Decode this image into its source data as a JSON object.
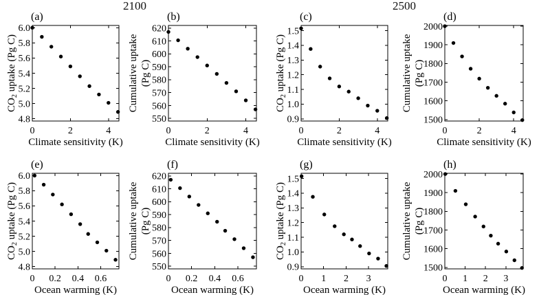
{
  "groups": [
    {
      "label": "2100"
    },
    {
      "label": "2500"
    }
  ],
  "chart_data": [
    {
      "panel": "(a)",
      "type": "scatter",
      "group": "2100",
      "xlabel": "Climate sensitivity (K)",
      "ylabel_lines": [
        [
          {
            "t": "CO"
          },
          {
            "t": "2",
            "sub": true
          },
          {
            "t": " uptake (Pg C)"
          }
        ]
      ],
      "x": [
        0,
        0.5,
        1.0,
        1.5,
        2.0,
        2.5,
        3.0,
        3.5,
        4.0,
        4.5
      ],
      "y": [
        6.0,
        5.88,
        5.75,
        5.62,
        5.49,
        5.36,
        5.23,
        5.12,
        5.01,
        4.89
      ],
      "xlim": [
        0,
        4.55
      ],
      "ylim": [
        4.77,
        6.03
      ],
      "xtick_vals": [
        0,
        2,
        4
      ],
      "xtick_labels": [
        "0",
        "2",
        "4"
      ],
      "ytick_vals": [
        4.8,
        5.0,
        5.2,
        5.4,
        5.6,
        5.8,
        6.0
      ],
      "ytick_labels": [
        "4.8",
        "5.0",
        "5.2",
        "5.4",
        "5.6",
        "5.8",
        "6.0"
      ],
      "grid": false,
      "legend": null
    },
    {
      "panel": "(b)",
      "type": "scatter",
      "group": "2100",
      "xlabel": "Climate sensitivity (K)",
      "ylabel_lines": [
        [
          {
            "t": "Cumulative uptake"
          }
        ],
        [
          {
            "t": "(Pg C)"
          }
        ]
      ],
      "x": [
        0,
        0.5,
        1.0,
        1.5,
        2.0,
        2.5,
        3.0,
        3.5,
        4.0,
        4.5
      ],
      "y": [
        617,
        610.5,
        604,
        597.5,
        591,
        584.5,
        577.5,
        571,
        564,
        557
      ],
      "xlim": [
        0,
        4.55
      ],
      "ylim": [
        548,
        622
      ],
      "xtick_vals": [
        0,
        2,
        4
      ],
      "xtick_labels": [
        "0",
        "2",
        "4"
      ],
      "ytick_vals": [
        550,
        560,
        570,
        580,
        590,
        600,
        610,
        620
      ],
      "ytick_labels": [
        "550",
        "560",
        "570",
        "580",
        "590",
        "600",
        "610",
        "620"
      ],
      "grid": false,
      "legend": null
    },
    {
      "panel": "(c)",
      "type": "scatter",
      "group": "2500",
      "xlabel": "Climate sensitivity (K)",
      "ylabel_lines": [
        [
          {
            "t": "CO"
          },
          {
            "t": "2",
            "sub": true
          },
          {
            "t": " uptake (Pg C)"
          }
        ]
      ],
      "x": [
        0,
        0.5,
        1.0,
        1.5,
        2.0,
        2.5,
        3.0,
        3.5,
        4.0,
        4.5
      ],
      "y": [
        1.515,
        1.375,
        1.255,
        1.175,
        1.12,
        1.085,
        1.04,
        0.99,
        0.955,
        0.905
      ],
      "xlim": [
        0,
        4.55
      ],
      "ylim": [
        0.885,
        1.535
      ],
      "xtick_vals": [
        0,
        2,
        4
      ],
      "xtick_labels": [
        "0",
        "2",
        "4"
      ],
      "ytick_vals": [
        0.9,
        1.0,
        1.1,
        1.2,
        1.3,
        1.4,
        1.5
      ],
      "ytick_labels": [
        "0.9",
        "1.0",
        "1.1",
        "1.2",
        "1.3",
        "1.4",
        "1.5"
      ],
      "grid": false,
      "legend": null
    },
    {
      "panel": "(d)",
      "type": "scatter",
      "group": "2500",
      "xlabel": "Climate sensitivity (K)",
      "ylabel_lines": [
        [
          {
            "t": "Cumulative uptake"
          }
        ],
        [
          {
            "t": "(Pg C)"
          }
        ]
      ],
      "x": [
        0,
        0.5,
        1.0,
        1.5,
        2.0,
        2.5,
        3.0,
        3.5,
        4.0,
        4.5
      ],
      "y": [
        2000,
        1910,
        1838,
        1772,
        1719,
        1670,
        1627,
        1585,
        1538,
        1497
      ],
      "xlim": [
        0,
        4.55
      ],
      "ylim": [
        1492,
        2004
      ],
      "xtick_vals": [
        0,
        2,
        4
      ],
      "xtick_labels": [
        "0",
        "2",
        "4"
      ],
      "ytick_vals": [
        1500,
        1600,
        1700,
        1800,
        1900,
        2000
      ],
      "ytick_labels": [
        "1500",
        "1600",
        "1700",
        "1800",
        "1900",
        "2000"
      ],
      "grid": false,
      "legend": null
    },
    {
      "panel": "(e)",
      "type": "scatter",
      "group": "2100",
      "xlabel": "Ocean warming (K)",
      "ylabel_lines": [
        [
          {
            "t": "CO"
          },
          {
            "t": "2",
            "sub": true
          },
          {
            "t": " uptake (Pg C)"
          }
        ]
      ],
      "x": [
        0.02,
        0.1,
        0.18,
        0.26,
        0.34,
        0.42,
        0.49,
        0.57,
        0.65,
        0.73
      ],
      "y": [
        6.0,
        5.88,
        5.75,
        5.62,
        5.49,
        5.36,
        5.23,
        5.12,
        5.01,
        4.89
      ],
      "xlim": [
        0,
        0.76
      ],
      "ylim": [
        4.77,
        6.03
      ],
      "xtick_vals": [
        0,
        0.2,
        0.4,
        0.6
      ],
      "xtick_labels": [
        "0",
        "0.2",
        "0.4",
        "0.6"
      ],
      "ytick_vals": [
        4.8,
        5.0,
        5.2,
        5.4,
        5.6,
        5.8,
        6.0
      ],
      "ytick_labels": [
        "4.8",
        "5.0",
        "5.2",
        "5.4",
        "5.6",
        "5.8",
        "6.0"
      ],
      "grid": false,
      "legend": null
    },
    {
      "panel": "(f)",
      "type": "scatter",
      "group": "2100",
      "xlabel": "Ocean warming (K)",
      "ylabel_lines": [
        [
          {
            "t": "Cumulative uptake"
          }
        ],
        [
          {
            "t": "(Pg C)"
          }
        ]
      ],
      "x": [
        0.02,
        0.1,
        0.18,
        0.26,
        0.34,
        0.42,
        0.49,
        0.57,
        0.65,
        0.73
      ],
      "y": [
        617,
        610.5,
        604,
        597.5,
        591,
        584.5,
        577.5,
        571,
        564,
        557
      ],
      "xlim": [
        0,
        0.76
      ],
      "ylim": [
        548,
        622
      ],
      "xtick_vals": [
        0,
        0.2,
        0.4,
        0.6
      ],
      "xtick_labels": [
        "0",
        "0.2",
        "0.4",
        "0.6"
      ],
      "ytick_vals": [
        550,
        560,
        570,
        580,
        590,
        600,
        610,
        620
      ],
      "ytick_labels": [
        "550",
        "560",
        "570",
        "580",
        "590",
        "600",
        "610",
        "620"
      ],
      "grid": false,
      "legend": null
    },
    {
      "panel": "(g)",
      "type": "scatter",
      "group": "2500",
      "xlabel": "Ocean warming (K)",
      "ylabel_lines": [
        [
          {
            "t": "CO"
          },
          {
            "t": "2",
            "sub": true
          },
          {
            "t": " uptake (Pg C)"
          }
        ]
      ],
      "x": [
        0.02,
        0.52,
        1.03,
        1.49,
        1.9,
        2.26,
        2.62,
        3.02,
        3.42,
        3.79
      ],
      "y": [
        1.515,
        1.375,
        1.255,
        1.175,
        1.12,
        1.085,
        1.04,
        0.99,
        0.955,
        0.905
      ],
      "xlim": [
        0,
        3.85
      ],
      "ylim": [
        0.885,
        1.535
      ],
      "xtick_vals": [
        0,
        1,
        2,
        3
      ],
      "xtick_labels": [
        "0",
        "1",
        "2",
        "3"
      ],
      "ytick_vals": [
        0.9,
        1.0,
        1.1,
        1.2,
        1.3,
        1.4,
        1.5
      ],
      "ytick_labels": [
        "0.9",
        "1.0",
        "1.1",
        "1.2",
        "1.3",
        "1.4",
        "1.5"
      ],
      "grid": false,
      "legend": null
    },
    {
      "panel": "(h)",
      "type": "scatter",
      "group": "2500",
      "xlabel": "Ocean warming (K)",
      "ylabel_lines": [
        [
          {
            "t": "Cumulative uptake"
          }
        ],
        [
          {
            "t": "(Pg C)"
          }
        ]
      ],
      "x": [
        0.02,
        0.52,
        1.03,
        1.49,
        1.9,
        2.26,
        2.62,
        3.02,
        3.42,
        3.79
      ],
      "y": [
        2000,
        1910,
        1838,
        1772,
        1719,
        1670,
        1627,
        1585,
        1538,
        1497
      ],
      "xlim": [
        0,
        3.85
      ],
      "ylim": [
        1492,
        2004
      ],
      "xtick_vals": [
        0,
        1,
        2,
        3
      ],
      "xtick_labels": [
        "0",
        "1",
        "2",
        "3"
      ],
      "ytick_vals": [
        1500,
        1600,
        1700,
        1800,
        1900,
        2000
      ],
      "ytick_labels": [
        "1500",
        "1600",
        "1700",
        "1800",
        "1900",
        "2000"
      ],
      "grid": false,
      "legend": null
    }
  ],
  "style": {
    "marker_color": "#000000",
    "axis_color": "#000000",
    "background": "#ffffff"
  }
}
